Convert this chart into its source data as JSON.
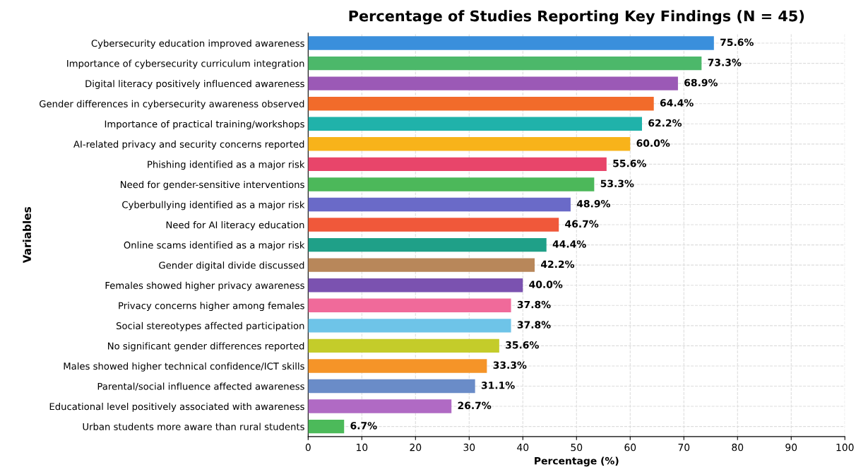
{
  "chart_data": {
    "type": "bar",
    "orientation": "horizontal",
    "title": "Percentage of Studies Reporting Key Findings (N = 45)",
    "xlabel": "Percentage (%)",
    "ylabel": "Variables",
    "categories": [
      "Cybersecurity education improved awareness",
      "Importance of cybersecurity curriculum integration",
      "Digital literacy positively influenced awareness",
      "Gender differences in cybersecurity awareness observed",
      "Importance of practical training/workshops",
      "AI-related privacy and security concerns reported",
      "Phishing identified as a major risk",
      "Need for gender-sensitive interventions",
      "Cyberbullying identified as a major risk",
      "Need for AI literacy education",
      "Online scams identified as a major risk",
      "Gender digital divide discussed",
      "Females showed higher privacy awareness",
      "Privacy concerns higher among females",
      "Social stereotypes affected participation",
      "No significant gender differences reported",
      "Males showed higher technical confidence/ICT skills",
      "Parental/social influence affected awareness",
      "Educational level positively associated with awareness",
      "Urban students more aware than rural students"
    ],
    "values": [
      75.6,
      73.3,
      68.9,
      64.4,
      62.2,
      60.0,
      55.6,
      53.3,
      48.9,
      46.7,
      44.4,
      42.2,
      40.0,
      37.8,
      37.8,
      35.6,
      33.3,
      31.1,
      26.7,
      6.7
    ],
    "value_labels": [
      "75.6%",
      "73.3%",
      "68.9%",
      "64.4%",
      "62.2%",
      "60.0%",
      "55.6%",
      "53.3%",
      "48.9%",
      "46.7%",
      "44.4%",
      "42.2%",
      "40.0%",
      "37.8%",
      "37.8%",
      "35.6%",
      "33.3%",
      "31.1%",
      "26.7%",
      "6.7%"
    ],
    "colors": [
      "#3a8fdc",
      "#4cb86a",
      "#9b59b6",
      "#f26b2a",
      "#20b2aa",
      "#f8b31a",
      "#e8456a",
      "#4cb85a",
      "#6a6ac8",
      "#f0583a",
      "#1fa088",
      "#b8875a",
      "#7b52b0",
      "#f06a9a",
      "#6ec4e8",
      "#c4cc2a",
      "#f59428",
      "#6a8cc8",
      "#b06ac4",
      "#4cba5a"
    ],
    "xlim": [
      0,
      100
    ],
    "xticks": [
      0,
      10,
      20,
      30,
      40,
      50,
      60,
      70,
      80,
      90,
      100
    ],
    "grid": true,
    "line_style": "dashed"
  }
}
